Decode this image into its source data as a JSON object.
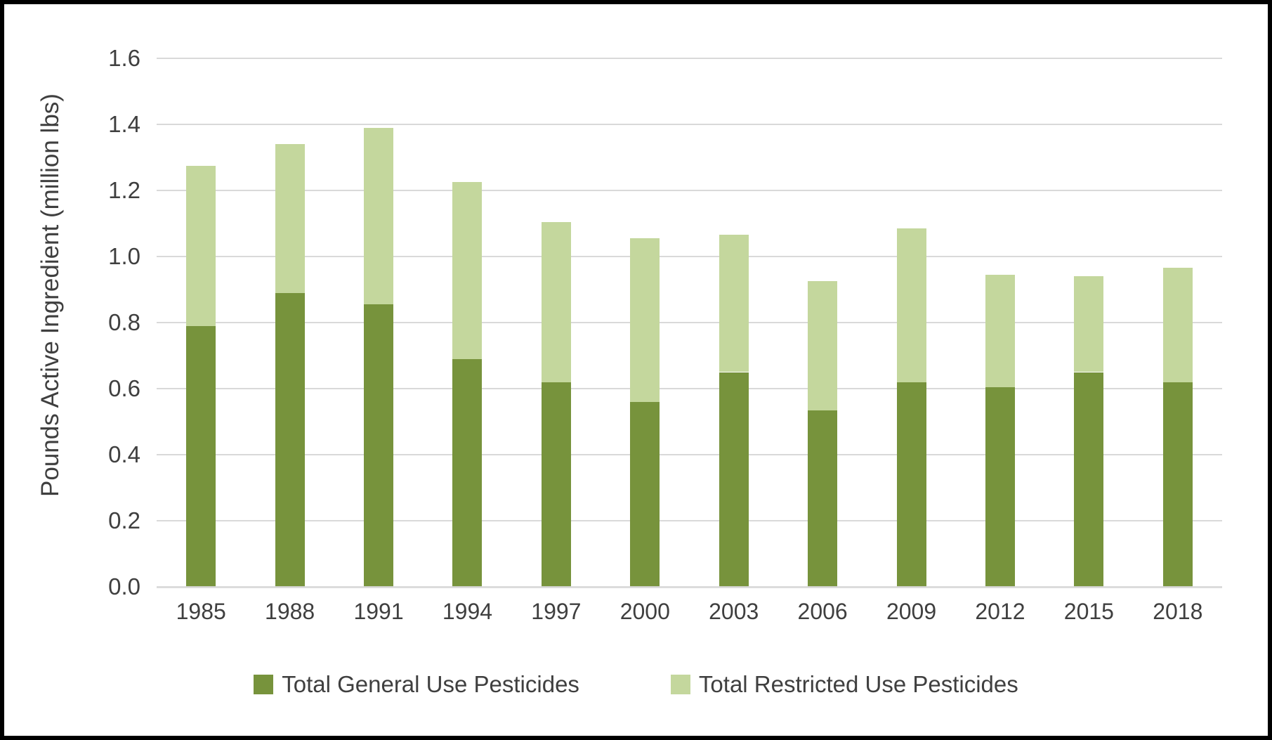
{
  "chart_data": {
    "type": "bar",
    "stacked": true,
    "title": "",
    "xlabel": "",
    "ylabel": "Pounds Active Ingredient (million lbs)",
    "ylim": [
      0,
      1.6
    ],
    "ytick_step": 0.2,
    "yticks": [
      "0.0",
      "0.2",
      "0.4",
      "0.6",
      "0.8",
      "1.0",
      "1.2",
      "1.4",
      "1.6"
    ],
    "grid": true,
    "legend_position": "bottom",
    "categories": [
      "1985",
      "1988",
      "1991",
      "1994",
      "1997",
      "2000",
      "2003",
      "2006",
      "2009",
      "2012",
      "2015",
      "2018"
    ],
    "series": [
      {
        "name": "Total General Use Pesticides",
        "color": "#77933C",
        "values": [
          0.79,
          0.89,
          0.855,
          0.69,
          0.62,
          0.56,
          0.65,
          0.535,
          0.62,
          0.605,
          0.65,
          0.62
        ]
      },
      {
        "name": "Total Restricted Use Pesticides",
        "color": "#C4D79D",
        "values": [
          0.485,
          0.45,
          0.535,
          0.535,
          0.485,
          0.495,
          0.415,
          0.39,
          0.465,
          0.34,
          0.29,
          0.345
        ]
      }
    ],
    "totals": [
      1.275,
      1.34,
      1.39,
      1.225,
      1.105,
      1.055,
      1.065,
      0.925,
      1.085,
      0.945,
      0.94,
      0.965
    ]
  },
  "styles": {
    "grid_color": "#D9D9D9",
    "text_color": "#3F3F3F",
    "border_color": "#000000",
    "background": "#FFFFFF"
  }
}
